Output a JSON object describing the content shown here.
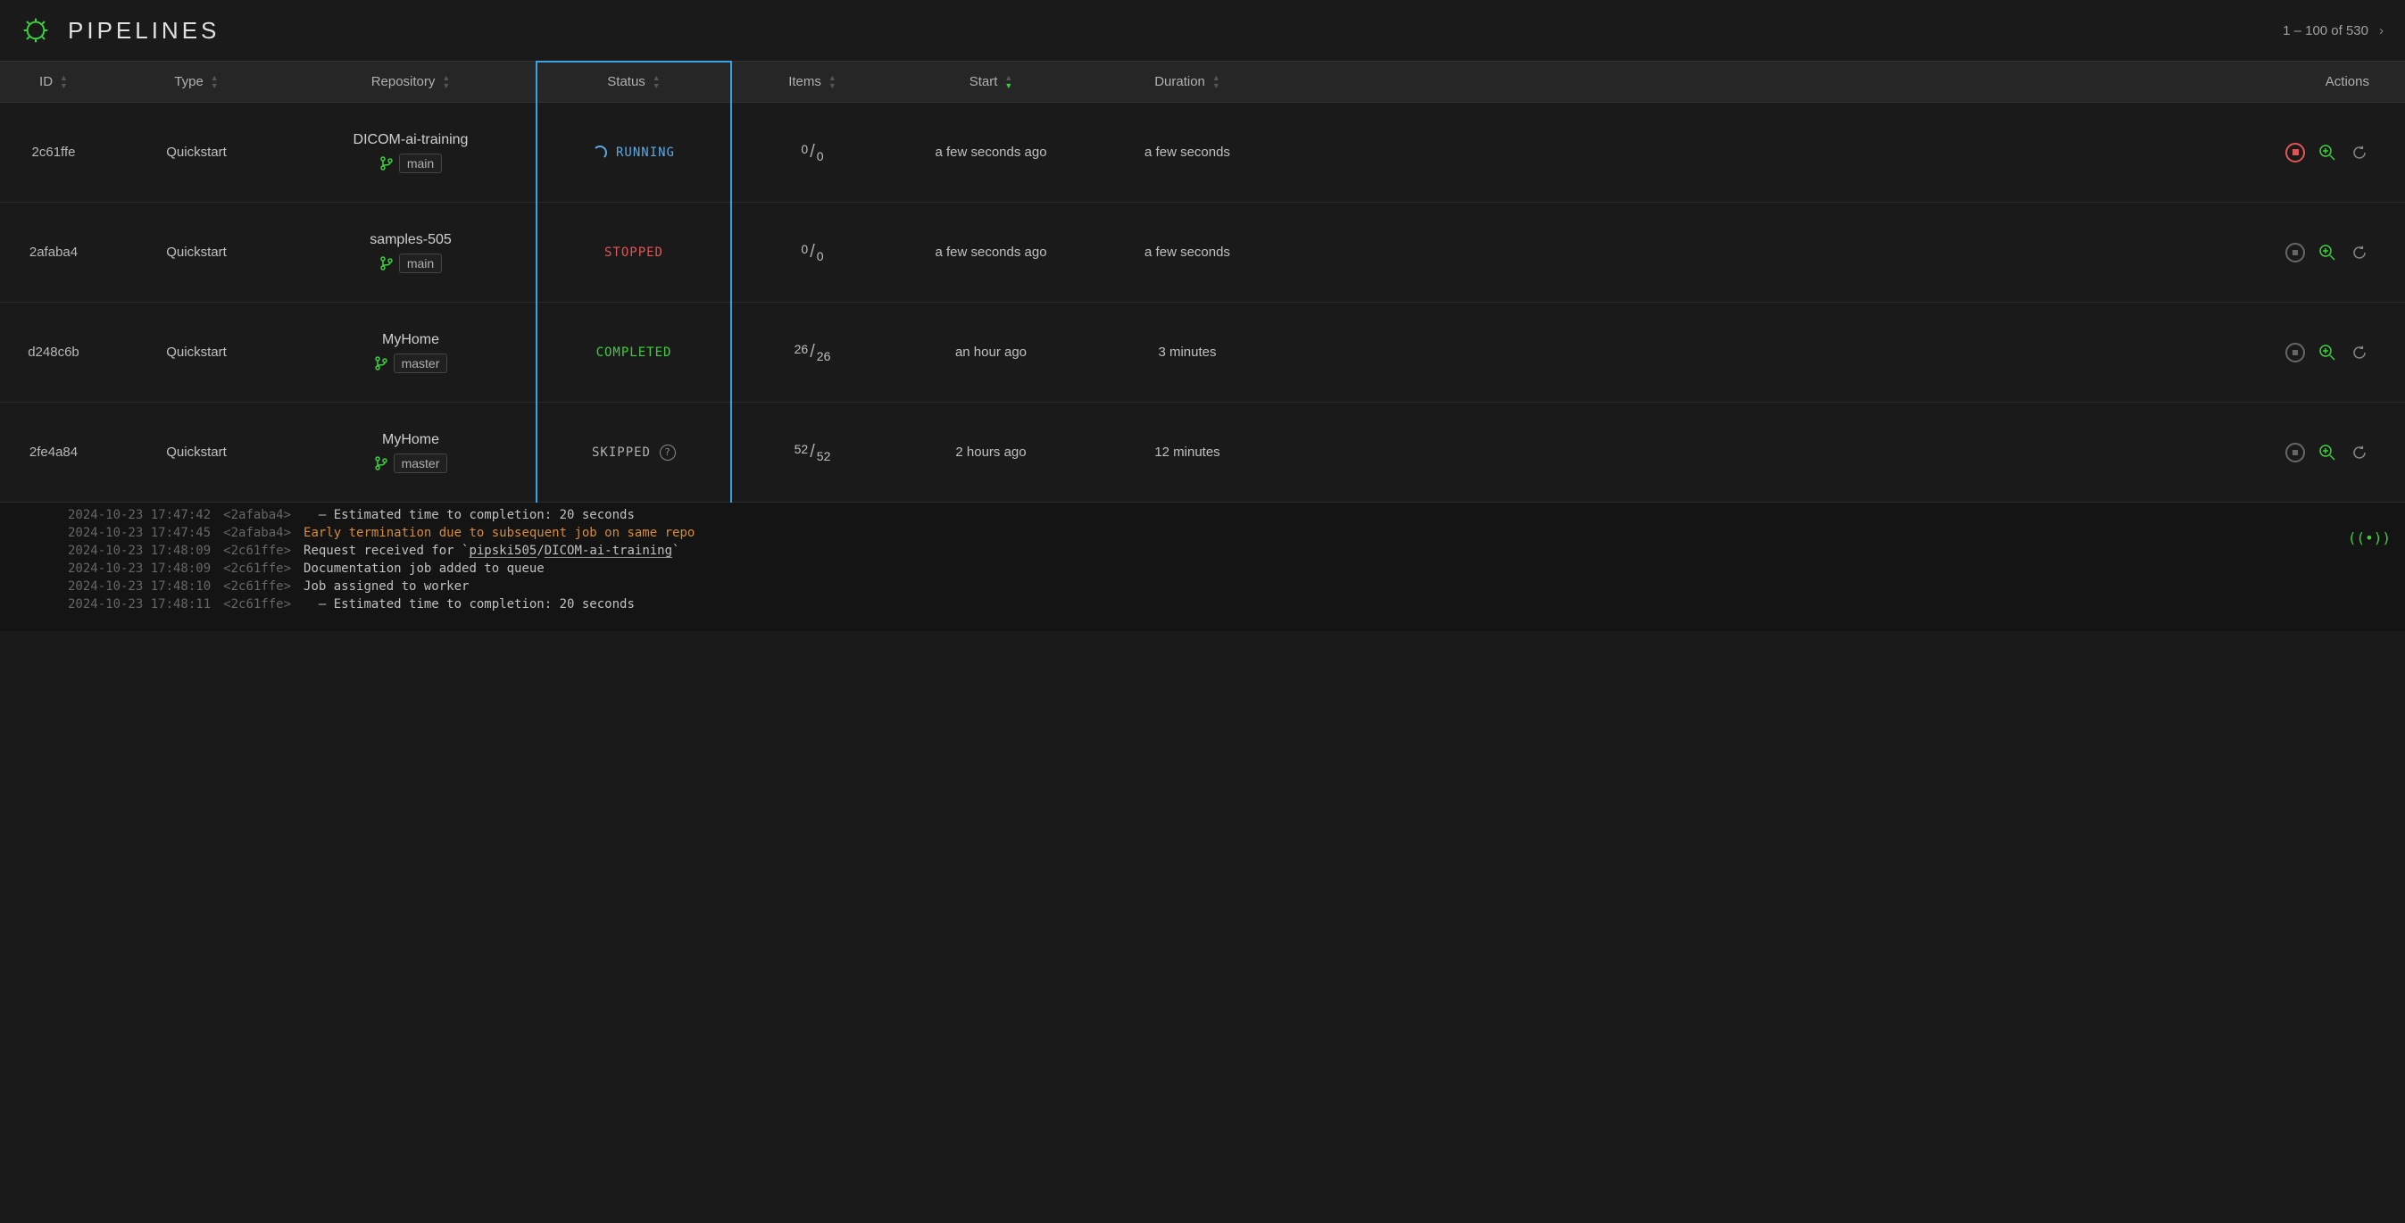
{
  "header": {
    "title": "PIPELINES",
    "pagination": "1 – 100 of 530"
  },
  "columns": {
    "id": "ID",
    "type": "Type",
    "repository": "Repository",
    "status": "Status",
    "items": "Items",
    "start": "Start",
    "duration": "Duration",
    "actions": "Actions",
    "sorted_column": "start",
    "sort_direction": "desc"
  },
  "rows": [
    {
      "id": "2c61ffe",
      "type": "Quickstart",
      "repo": "DICOM-ai-training",
      "branch": "main",
      "status": "RUNNING",
      "status_class": "running",
      "items_num": "0",
      "items_den": "0",
      "start": "a few seconds ago",
      "duration": "a few seconds",
      "stop_active": true
    },
    {
      "id": "2afaba4",
      "type": "Quickstart",
      "repo": "samples-505",
      "branch": "main",
      "status": "STOPPED",
      "status_class": "stopped",
      "items_num": "0",
      "items_den": "0",
      "start": "a few seconds ago",
      "duration": "a few seconds",
      "stop_active": false
    },
    {
      "id": "d248c6b",
      "type": "Quickstart",
      "repo": "MyHome",
      "branch": "master",
      "status": "COMPLETED",
      "status_class": "completed",
      "items_num": "26",
      "items_den": "26",
      "start": "an hour ago",
      "duration": "3 minutes",
      "stop_active": false
    },
    {
      "id": "2fe4a84",
      "type": "Quickstart",
      "repo": "MyHome",
      "branch": "master",
      "status": "SKIPPED",
      "status_class": "skipped",
      "items_num": "52",
      "items_den": "52",
      "start": "2 hours ago",
      "duration": "12 minutes",
      "stop_active": false,
      "show_help": true
    }
  ],
  "log": {
    "lines": [
      {
        "ts": "2024-10-23 17:47:42",
        "hash": "<2afaba4>",
        "msg": "  – Estimated time to completion: 20 seconds",
        "cls": ""
      },
      {
        "ts": "2024-10-23 17:47:45",
        "hash": "<2afaba4>",
        "msg": "Early termination due to subsequent job on same repo",
        "cls": "warn"
      },
      {
        "ts": "2024-10-23 17:48:09",
        "hash": "<2c61ffe>",
        "msg_html": "Request received for `<span class='underline'>pipski505</span>/<span class='underline'>DICOM-ai-training</span>`",
        "cls": ""
      },
      {
        "ts": "2024-10-23 17:48:09",
        "hash": "<2c61ffe>",
        "msg": "Documentation job added to queue",
        "cls": ""
      },
      {
        "ts": "2024-10-23 17:48:10",
        "hash": "<2c61ffe>",
        "msg": "Job assigned to worker",
        "cls": ""
      },
      {
        "ts": "2024-10-23 17:48:11",
        "hash": "<2c61ffe>",
        "msg": "  – Estimated time to completion: 20 seconds",
        "cls": ""
      }
    ]
  },
  "colors": {
    "bg": "#1a1a1a",
    "header_bg": "#262626",
    "accent_green": "#3ecf3e",
    "accent_blue": "#5aa9e6",
    "highlight_border": "#3aa3e3",
    "accent_red": "#e05555",
    "accent_orange": "#d68b3a",
    "text_muted": "#666"
  }
}
